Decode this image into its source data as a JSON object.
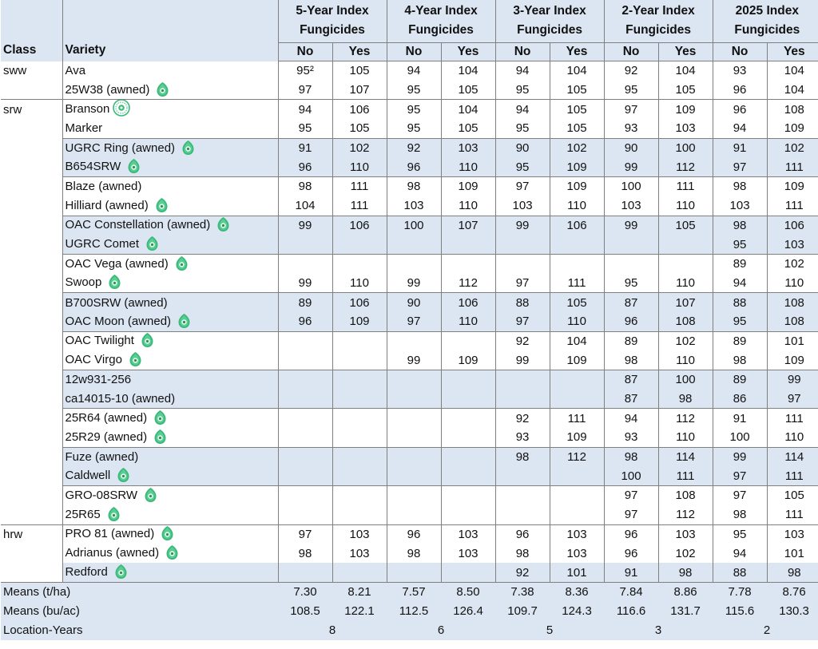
{
  "headers": {
    "class": "Class",
    "variety": "Variety",
    "groups": [
      {
        "line1": "5-Year Index",
        "line2": "Fungicides"
      },
      {
        "line1": "4-Year Index",
        "line2": "Fungicides"
      },
      {
        "line1": "3-Year Index",
        "line2": "Fungicides"
      },
      {
        "line1": "2-Year Index",
        "line2": "Fungicides"
      },
      {
        "line1": "2025 Index",
        "line2": "Fungicides"
      }
    ],
    "no": "No",
    "yes": "Yes"
  },
  "rows": [
    {
      "class": "sww",
      "variety": "Ava",
      "icon": "",
      "values": [
        "95²",
        "105",
        "94",
        "104",
        "94",
        "104",
        "92",
        "104",
        "93",
        "104"
      ]
    },
    {
      "class": "",
      "variety": "25W38 (awned)",
      "icon": "leaf-icon",
      "values": [
        "97",
        "107",
        "95",
        "105",
        "95",
        "105",
        "95",
        "105",
        "96",
        "104"
      ]
    },
    {
      "class": "srw",
      "variety": "Branson",
      "icon": "seal-badge-icon",
      "values": [
        "94",
        "106",
        "95",
        "104",
        "94",
        "105",
        "97",
        "109",
        "96",
        "108"
      ]
    },
    {
      "class": "",
      "variety": "Marker",
      "icon": "",
      "values": [
        "95",
        "105",
        "95",
        "105",
        "95",
        "105",
        "93",
        "103",
        "94",
        "109"
      ]
    },
    {
      "class": "",
      "variety": "UGRC Ring (awned)",
      "icon": "leaf-icon",
      "values": [
        "91",
        "102",
        "92",
        "103",
        "90",
        "102",
        "90",
        "100",
        "91",
        "102"
      ]
    },
    {
      "class": "",
      "variety": "B654SRW",
      "icon": "leaf-icon",
      "values": [
        "96",
        "110",
        "96",
        "110",
        "95",
        "109",
        "99",
        "112",
        "97",
        "111"
      ]
    },
    {
      "class": "",
      "variety": "Blaze (awned)",
      "icon": "",
      "values": [
        "98",
        "111",
        "98",
        "109",
        "97",
        "109",
        "100",
        "111",
        "98",
        "109"
      ]
    },
    {
      "class": "",
      "variety": "Hilliard (awned)",
      "icon": "leaf-icon",
      "values": [
        "104",
        "111",
        "103",
        "110",
        "103",
        "110",
        "103",
        "110",
        "103",
        "111"
      ]
    },
    {
      "class": "",
      "variety": "OAC Constellation (awned)",
      "icon": "leaf-icon",
      "values": [
        "99",
        "106",
        "100",
        "107",
        "99",
        "106",
        "99",
        "105",
        "98",
        "106"
      ]
    },
    {
      "class": "",
      "variety": "UGRC Comet",
      "icon": "leaf-icon",
      "values": [
        "",
        "",
        "",
        "",
        "",
        "",
        "",
        "",
        "95",
        "103"
      ]
    },
    {
      "class": "",
      "variety": "OAC Vega (awned)",
      "icon": "leaf-icon",
      "values": [
        "",
        "",
        "",
        "",
        "",
        "",
        "",
        "",
        "89",
        "102"
      ]
    },
    {
      "class": "",
      "variety": "Swoop",
      "icon": "leaf-icon",
      "values": [
        "99",
        "110",
        "99",
        "112",
        "97",
        "111",
        "95",
        "110",
        "94",
        "110"
      ]
    },
    {
      "class": "",
      "variety": "B700SRW (awned)",
      "icon": "",
      "values": [
        "89",
        "106",
        "90",
        "106",
        "88",
        "105",
        "87",
        "107",
        "88",
        "108"
      ]
    },
    {
      "class": "",
      "variety": "OAC Moon (awned)",
      "icon": "leaf-icon",
      "values": [
        "96",
        "109",
        "97",
        "110",
        "97",
        "110",
        "96",
        "108",
        "95",
        "108"
      ]
    },
    {
      "class": "",
      "variety": "OAC Twilight",
      "icon": "leaf-icon",
      "values": [
        "",
        "",
        "",
        "",
        "92",
        "104",
        "89",
        "102",
        "89",
        "101"
      ]
    },
    {
      "class": "",
      "variety": "OAC Virgo",
      "icon": "leaf-icon",
      "values": [
        "",
        "",
        "99",
        "109",
        "99",
        "109",
        "98",
        "110",
        "98",
        "109"
      ]
    },
    {
      "class": "",
      "variety": "12w931-256",
      "icon": "",
      "values": [
        "",
        "",
        "",
        "",
        "",
        "",
        "87",
        "100",
        "89",
        "99"
      ]
    },
    {
      "class": "",
      "variety": "ca14015-10 (awned)",
      "icon": "",
      "values": [
        "",
        "",
        "",
        "",
        "",
        "",
        "87",
        "98",
        "86",
        "97"
      ]
    },
    {
      "class": "",
      "variety": "25R64 (awned)",
      "icon": "leaf-icon",
      "values": [
        "",
        "",
        "",
        "",
        "92",
        "111",
        "94",
        "112",
        "91",
        "111"
      ]
    },
    {
      "class": "",
      "variety": "25R29 (awned)",
      "icon": "leaf-icon",
      "values": [
        "",
        "",
        "",
        "",
        "93",
        "109",
        "93",
        "110",
        "100",
        "110"
      ]
    },
    {
      "class": "",
      "variety": "Fuze (awned)",
      "icon": "",
      "values": [
        "",
        "",
        "",
        "",
        "98",
        "112",
        "98",
        "114",
        "99",
        "114"
      ]
    },
    {
      "class": "",
      "variety": "Caldwell",
      "icon": "leaf-icon",
      "values": [
        "",
        "",
        "",
        "",
        "",
        "",
        "100",
        "111",
        "97",
        "111"
      ]
    },
    {
      "class": "",
      "variety": "GRO-08SRW",
      "icon": "leaf-icon",
      "values": [
        "",
        "",
        "",
        "",
        "",
        "",
        "97",
        "108",
        "97",
        "105"
      ]
    },
    {
      "class": "",
      "variety": "25R65",
      "icon": "leaf-icon",
      "values": [
        "",
        "",
        "",
        "",
        "",
        "",
        "97",
        "112",
        "98",
        "111"
      ]
    },
    {
      "class": "hrw",
      "variety": "PRO 81 (awned)",
      "icon": "leaf-icon",
      "values": [
        "97",
        "103",
        "96",
        "103",
        "96",
        "103",
        "96",
        "103",
        "95",
        "103"
      ]
    },
    {
      "class": "",
      "variety": "Adrianus (awned)",
      "icon": "leaf-icon",
      "values": [
        "98",
        "103",
        "98",
        "103",
        "98",
        "103",
        "96",
        "102",
        "94",
        "101"
      ]
    },
    {
      "class": "",
      "variety": "Redford",
      "icon": "leaf-icon",
      "values": [
        "",
        "",
        "",
        "",
        "92",
        "101",
        "91",
        "98",
        "88",
        "98"
      ]
    }
  ],
  "footer": {
    "means_tha": {
      "label": "Means (t/ha)",
      "values": [
        "7.30",
        "8.21",
        "7.57",
        "8.50",
        "7.38",
        "8.36",
        "7.84",
        "8.86",
        "7.78",
        "8.76"
      ]
    },
    "means_buac": {
      "label": "Means (bu/ac)",
      "values": [
        "108.5",
        "122.1",
        "112.5",
        "126.4",
        "109.7",
        "124.3",
        "116.6",
        "131.7",
        "115.6",
        "130.3"
      ]
    },
    "location_years": {
      "label": "Location-Years",
      "values": [
        "8",
        "6",
        "5",
        "3",
        "2"
      ]
    }
  },
  "colors": {
    "header_fill": "#dce6f2",
    "shade_fill": "#dce6f2",
    "grid": "#7f7f7f",
    "leaf": "#3cb97a"
  }
}
